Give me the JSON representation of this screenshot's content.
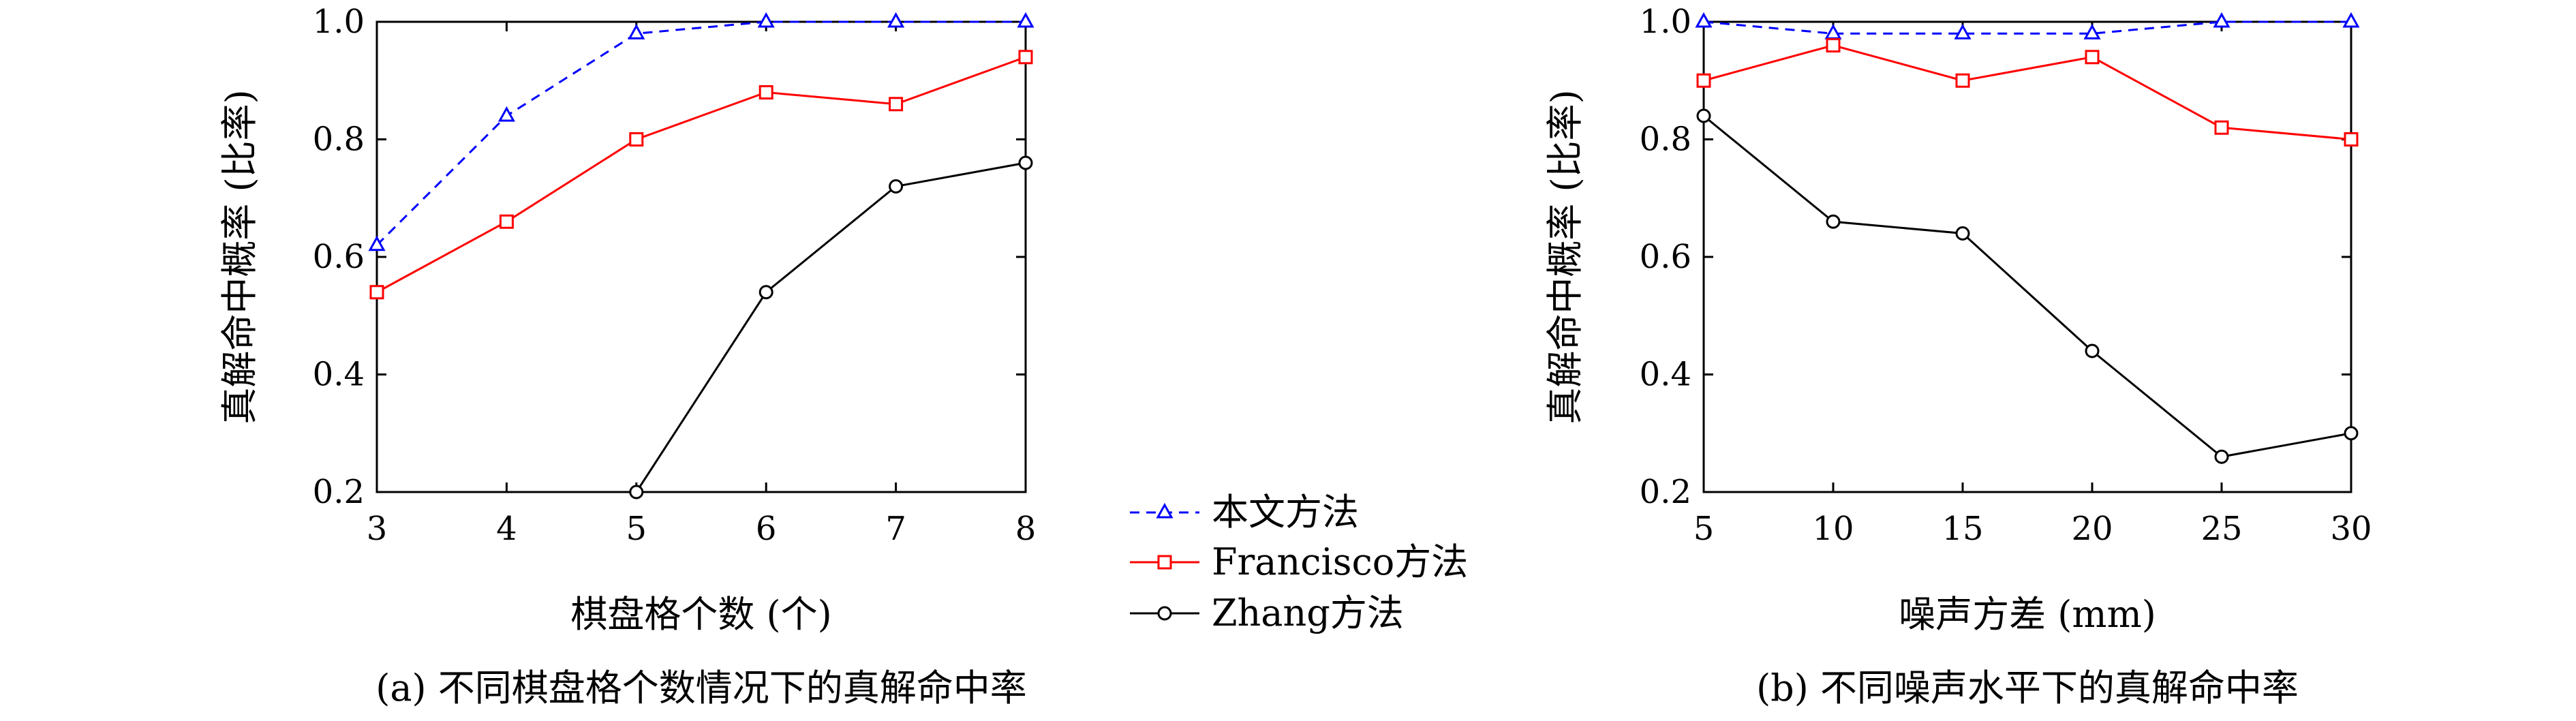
{
  "chart_data": [
    {
      "type": "line",
      "caption": "(a) 不同棋盘格个数情况下的真解命中率",
      "xlabel": "棋盘格个数 (个)",
      "ylabel": "真解命中概率 (比率)",
      "x": [
        3,
        4,
        5,
        6,
        7,
        8
      ],
      "xticks": [
        "3",
        "4",
        "5",
        "6",
        "7",
        "8"
      ],
      "yticks": [
        "0.2",
        "0.4",
        "0.6",
        "0.8",
        "1.0"
      ],
      "xlim": [
        3,
        8
      ],
      "ylim": [
        0.2,
        1.0
      ],
      "series": [
        {
          "name": "本文方法",
          "color": "#0000ff",
          "dash": true,
          "marker": "triangle",
          "x": [
            3,
            4,
            5,
            6,
            7,
            8
          ],
          "values": [
            0.62,
            0.84,
            0.98,
            1.0,
            1.0,
            1.0
          ]
        },
        {
          "name": "Francisco方法",
          "color": "#ff0000",
          "dash": false,
          "marker": "square",
          "x": [
            3,
            4,
            5,
            6,
            7,
            8
          ],
          "values": [
            0.54,
            0.66,
            0.8,
            0.88,
            0.86,
            0.94
          ]
        },
        {
          "name": "Zhang方法",
          "color": "#000000",
          "dash": false,
          "marker": "circle",
          "x": [
            5,
            6,
            7,
            8
          ],
          "values": [
            0.2,
            0.54,
            0.72,
            0.76
          ]
        }
      ]
    },
    {
      "type": "line",
      "caption": "(b) 不同噪声水平下的真解命中率",
      "xlabel": "噪声方差 (mm)",
      "ylabel": "真解命中概率 (比率)",
      "x": [
        5,
        10,
        15,
        20,
        25,
        30
      ],
      "xticks": [
        "5",
        "10",
        "15",
        "20",
        "25",
        "30"
      ],
      "yticks": [
        "0.2",
        "0.4",
        "0.6",
        "0.8",
        "1.0"
      ],
      "xlim": [
        5,
        30
      ],
      "ylim": [
        0.2,
        1.0
      ],
      "series": [
        {
          "name": "本文方法",
          "color": "#0000ff",
          "dash": true,
          "marker": "triangle",
          "x": [
            5,
            10,
            15,
            20,
            25,
            30
          ],
          "values": [
            1.0,
            0.98,
            0.98,
            0.98,
            1.0,
            1.0
          ]
        },
        {
          "name": "Francisco方法",
          "color": "#ff0000",
          "dash": false,
          "marker": "square",
          "x": [
            5,
            10,
            15,
            20,
            25,
            30
          ],
          "values": [
            0.9,
            0.96,
            0.9,
            0.94,
            0.82,
            0.8
          ]
        },
        {
          "name": "Zhang方法",
          "color": "#000000",
          "dash": false,
          "marker": "circle",
          "x": [
            5,
            10,
            15,
            20,
            25,
            30
          ],
          "values": [
            0.84,
            0.66,
            0.64,
            0.44,
            0.26,
            0.3
          ]
        }
      ]
    }
  ],
  "legend": {
    "placement": "center-between-panels",
    "entries": [
      "本文方法",
      "Francisco方法",
      "Zhang方法"
    ]
  }
}
